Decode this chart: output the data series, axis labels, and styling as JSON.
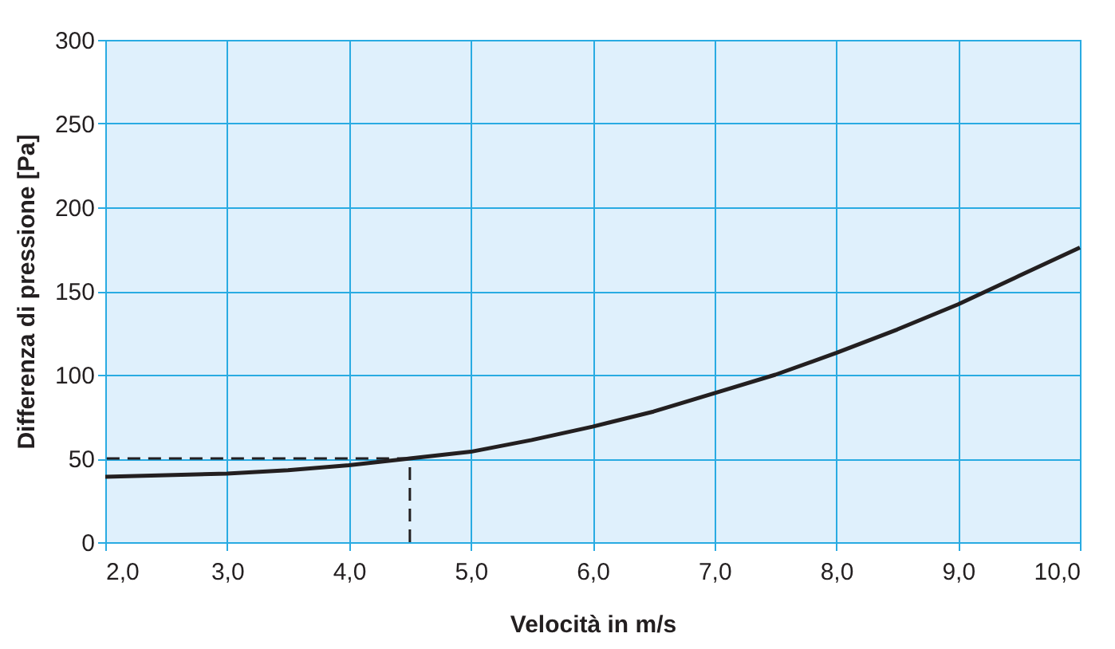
{
  "chart_data": {
    "type": "line",
    "xlabel": "Velocità in m/s",
    "ylabel": "Differenza di pressione [Pa]",
    "xlim": [
      2,
      10
    ],
    "ylim": [
      0,
      300
    ],
    "xticks": [
      {
        "value": 2,
        "label": "2,0"
      },
      {
        "value": 3,
        "label": "3,0"
      },
      {
        "value": 4,
        "label": "4,0"
      },
      {
        "value": 5,
        "label": "5,0"
      },
      {
        "value": 6,
        "label": "6,0"
      },
      {
        "value": 7,
        "label": "7,0"
      },
      {
        "value": 8,
        "label": "8,0"
      },
      {
        "value": 9,
        "label": "9,0"
      },
      {
        "value": 10,
        "label": "10,0"
      }
    ],
    "yticks": [
      0,
      50,
      100,
      150,
      200,
      250,
      300
    ],
    "grid": true,
    "marker": "none",
    "series": [
      {
        "color": "#231f20",
        "line_style": "solid",
        "x": [
          2,
          2.5,
          3,
          3.5,
          4,
          4.5,
          5,
          5.5,
          6,
          6.5,
          7,
          7.5,
          8,
          8.5,
          9,
          9.5,
          10
        ],
        "values": [
          39,
          40,
          41,
          43,
          46,
          50,
          54,
          61,
          69,
          78,
          89,
          100,
          113,
          127,
          142,
          159,
          176
        ]
      },
      {
        "color": "#231f20",
        "line_style": "dashed",
        "x": [
          4.5,
          2
        ],
        "values": [
          50,
          50
        ]
      },
      {
        "color": "#231f20",
        "line_style": "dashed",
        "x": [
          4.5,
          4.5
        ],
        "values": [
          0,
          50
        ]
      }
    ]
  }
}
